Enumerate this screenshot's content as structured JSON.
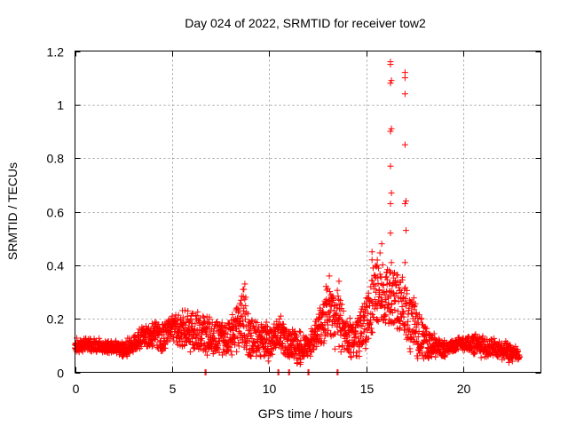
{
  "chart_data": {
    "type": "scatter",
    "title": "Day 024 of 2022, SRMTID for receiver tow2",
    "xlabel": "GPS time / hours",
    "ylabel": "SRMTID / TECUs",
    "xlim": [
      0,
      24
    ],
    "ylim": [
      0,
      1.2
    ],
    "xticks": [
      0,
      5,
      10,
      15,
      20
    ],
    "xtick_labels": [
      "0",
      "5",
      "10",
      "15",
      "20"
    ],
    "yticks": [
      0,
      0.2,
      0.4,
      0.6,
      0.8,
      1.0,
      1.2
    ],
    "ytick_labels": [
      "0",
      "0.2",
      "0.4",
      "0.6",
      "0.8",
      "1",
      "1.2"
    ],
    "grid": true,
    "legend": "none",
    "marker": "plus",
    "marker_color": "#ff0000",
    "series": [
      {
        "name": "SRMTID",
        "envelope": [
          {
            "x": 0.0,
            "low": 0.07,
            "high": 0.13
          },
          {
            "x": 1.0,
            "low": 0.07,
            "high": 0.13
          },
          {
            "x": 2.0,
            "low": 0.07,
            "high": 0.12
          },
          {
            "x": 2.5,
            "low": 0.05,
            "high": 0.12
          },
          {
            "x": 3.0,
            "low": 0.07,
            "high": 0.15
          },
          {
            "x": 3.5,
            "low": 0.09,
            "high": 0.18
          },
          {
            "x": 4.0,
            "low": 0.08,
            "high": 0.19
          },
          {
            "x": 4.5,
            "low": 0.05,
            "high": 0.2
          },
          {
            "x": 5.0,
            "low": 0.1,
            "high": 0.22
          },
          {
            "x": 5.5,
            "low": 0.08,
            "high": 0.24
          },
          {
            "x": 6.0,
            "low": 0.06,
            "high": 0.25
          },
          {
            "x": 7.0,
            "low": 0.06,
            "high": 0.22
          },
          {
            "x": 8.0,
            "low": 0.05,
            "high": 0.21
          },
          {
            "x": 8.7,
            "low": 0.08,
            "high": 0.33
          },
          {
            "x": 9.0,
            "low": 0.04,
            "high": 0.21
          },
          {
            "x": 10.0,
            "low": 0.04,
            "high": 0.19
          },
          {
            "x": 10.5,
            "low": 0.08,
            "high": 0.21
          },
          {
            "x": 11.0,
            "low": 0.04,
            "high": 0.17
          },
          {
            "x": 11.5,
            "low": 0.02,
            "high": 0.17
          },
          {
            "x": 12.0,
            "low": 0.05,
            "high": 0.15
          },
          {
            "x": 12.5,
            "low": 0.07,
            "high": 0.22
          },
          {
            "x": 13.0,
            "low": 0.1,
            "high": 0.35
          },
          {
            "x": 13.5,
            "low": 0.08,
            "high": 0.33
          },
          {
            "x": 14.0,
            "low": 0.05,
            "high": 0.2
          },
          {
            "x": 14.5,
            "low": 0.05,
            "high": 0.22
          },
          {
            "x": 15.0,
            "low": 0.07,
            "high": 0.3
          },
          {
            "x": 15.5,
            "low": 0.14,
            "high": 0.47
          },
          {
            "x": 16.0,
            "low": 0.16,
            "high": 0.42
          },
          {
            "x": 16.5,
            "low": 0.14,
            "high": 0.4
          },
          {
            "x": 17.0,
            "low": 0.08,
            "high": 0.35
          },
          {
            "x": 17.5,
            "low": 0.05,
            "high": 0.3
          },
          {
            "x": 18.0,
            "low": 0.04,
            "high": 0.18
          },
          {
            "x": 18.5,
            "low": 0.05,
            "high": 0.15
          },
          {
            "x": 19.0,
            "low": 0.05,
            "high": 0.12
          },
          {
            "x": 19.5,
            "low": 0.07,
            "high": 0.13
          },
          {
            "x": 20.0,
            "low": 0.08,
            "high": 0.14
          },
          {
            "x": 20.5,
            "low": 0.06,
            "high": 0.15
          },
          {
            "x": 21.0,
            "low": 0.05,
            "high": 0.14
          },
          {
            "x": 21.5,
            "low": 0.05,
            "high": 0.13
          },
          {
            "x": 22.0,
            "low": 0.04,
            "high": 0.12
          },
          {
            "x": 22.5,
            "low": 0.03,
            "high": 0.11
          },
          {
            "x": 22.9,
            "low": 0.04,
            "high": 0.09
          }
        ],
        "outliers": [
          {
            "x": 16.25,
            "y": 1.16
          },
          {
            "x": 16.25,
            "y": 1.15
          },
          {
            "x": 16.3,
            "y": 1.09
          },
          {
            "x": 16.25,
            "y": 1.08
          },
          {
            "x": 16.3,
            "y": 0.91
          },
          {
            "x": 16.25,
            "y": 0.9
          },
          {
            "x": 16.25,
            "y": 0.77
          },
          {
            "x": 16.3,
            "y": 0.67
          },
          {
            "x": 16.25,
            "y": 0.63
          },
          {
            "x": 16.25,
            "y": 0.52
          },
          {
            "x": 16.3,
            "y": 0.41
          },
          {
            "x": 16.2,
            "y": 0.38
          },
          {
            "x": 17.0,
            "y": 1.12
          },
          {
            "x": 17.0,
            "y": 1.1
          },
          {
            "x": 17.0,
            "y": 1.04
          },
          {
            "x": 17.0,
            "y": 0.85
          },
          {
            "x": 17.05,
            "y": 0.64
          },
          {
            "x": 17.0,
            "y": 0.63
          },
          {
            "x": 17.05,
            "y": 0.53
          },
          {
            "x": 17.0,
            "y": 0.41
          },
          {
            "x": 15.3,
            "y": 0.45
          },
          {
            "x": 15.3,
            "y": 0.42
          },
          {
            "x": 15.8,
            "y": 0.48
          },
          {
            "x": 8.75,
            "y": 0.33
          },
          {
            "x": 8.7,
            "y": 0.31
          },
          {
            "x": 13.1,
            "y": 0.36
          },
          {
            "x": 13.6,
            "y": 0.34
          },
          {
            "x": 10.6,
            "y": 0.21
          },
          {
            "x": 11.6,
            "y": 0.03
          },
          {
            "x": 6.7,
            "y": 0.0
          },
          {
            "x": 6.75,
            "y": 0.0
          },
          {
            "x": 10.45,
            "y": 0.0
          },
          {
            "x": 10.5,
            "y": 0.0
          },
          {
            "x": 11.0,
            "y": 0.0
          },
          {
            "x": 11.05,
            "y": 0.0
          },
          {
            "x": 12.0,
            "y": 0.0
          },
          {
            "x": 12.05,
            "y": 0.0
          },
          {
            "x": 13.5,
            "y": 0.0
          },
          {
            "x": 13.55,
            "y": 0.0
          }
        ],
        "sample_spacing_hours": 0.02
      }
    ]
  }
}
